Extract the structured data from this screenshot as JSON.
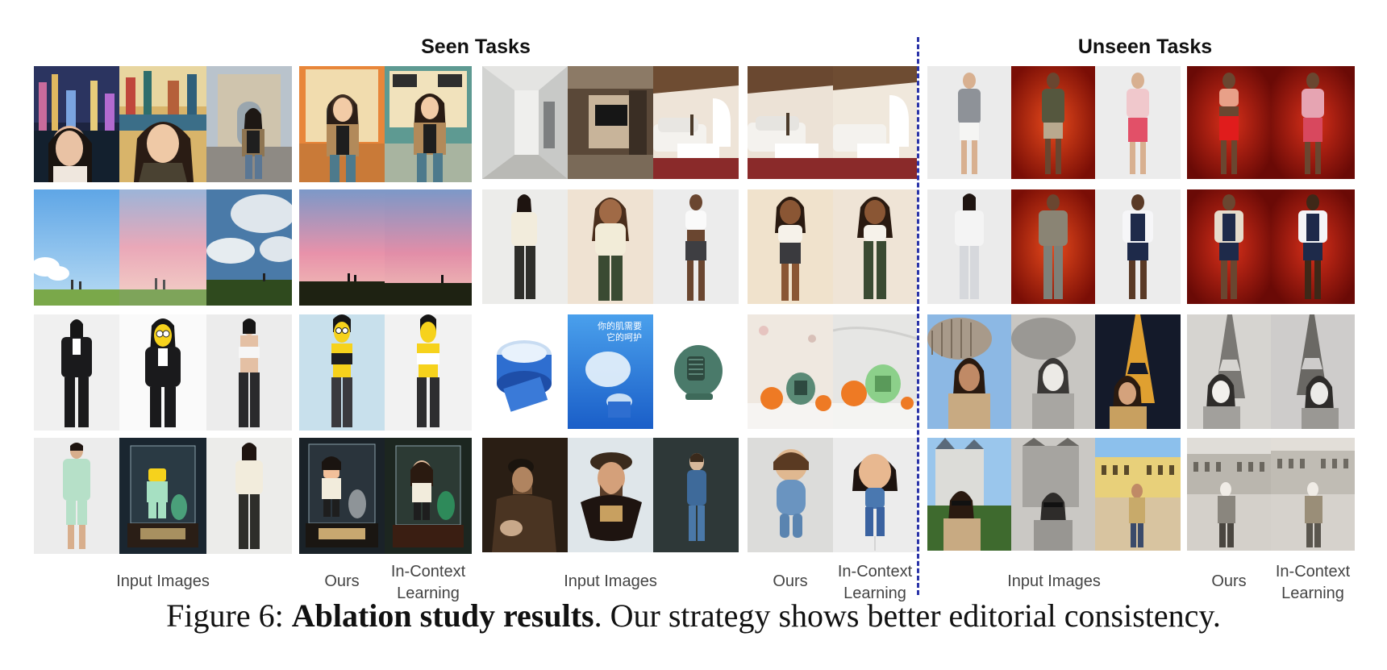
{
  "sections": {
    "seen_title": "Seen Tasks",
    "unseen_title": "Unseen Tasks"
  },
  "labels": {
    "input": "Input Images",
    "ours": "Ours",
    "icl_line1": "In-Context",
    "icl_line2": "Learning"
  },
  "caption": {
    "prefix": "Figure 6: ",
    "bold": "Ablation study results",
    "rest": ". Our strategy shows better editorial consistency."
  },
  "colors": {
    "divider": "#2b34a8",
    "label_text": "#444444"
  },
  "product_text": "你的肌需要 它的呵护"
}
